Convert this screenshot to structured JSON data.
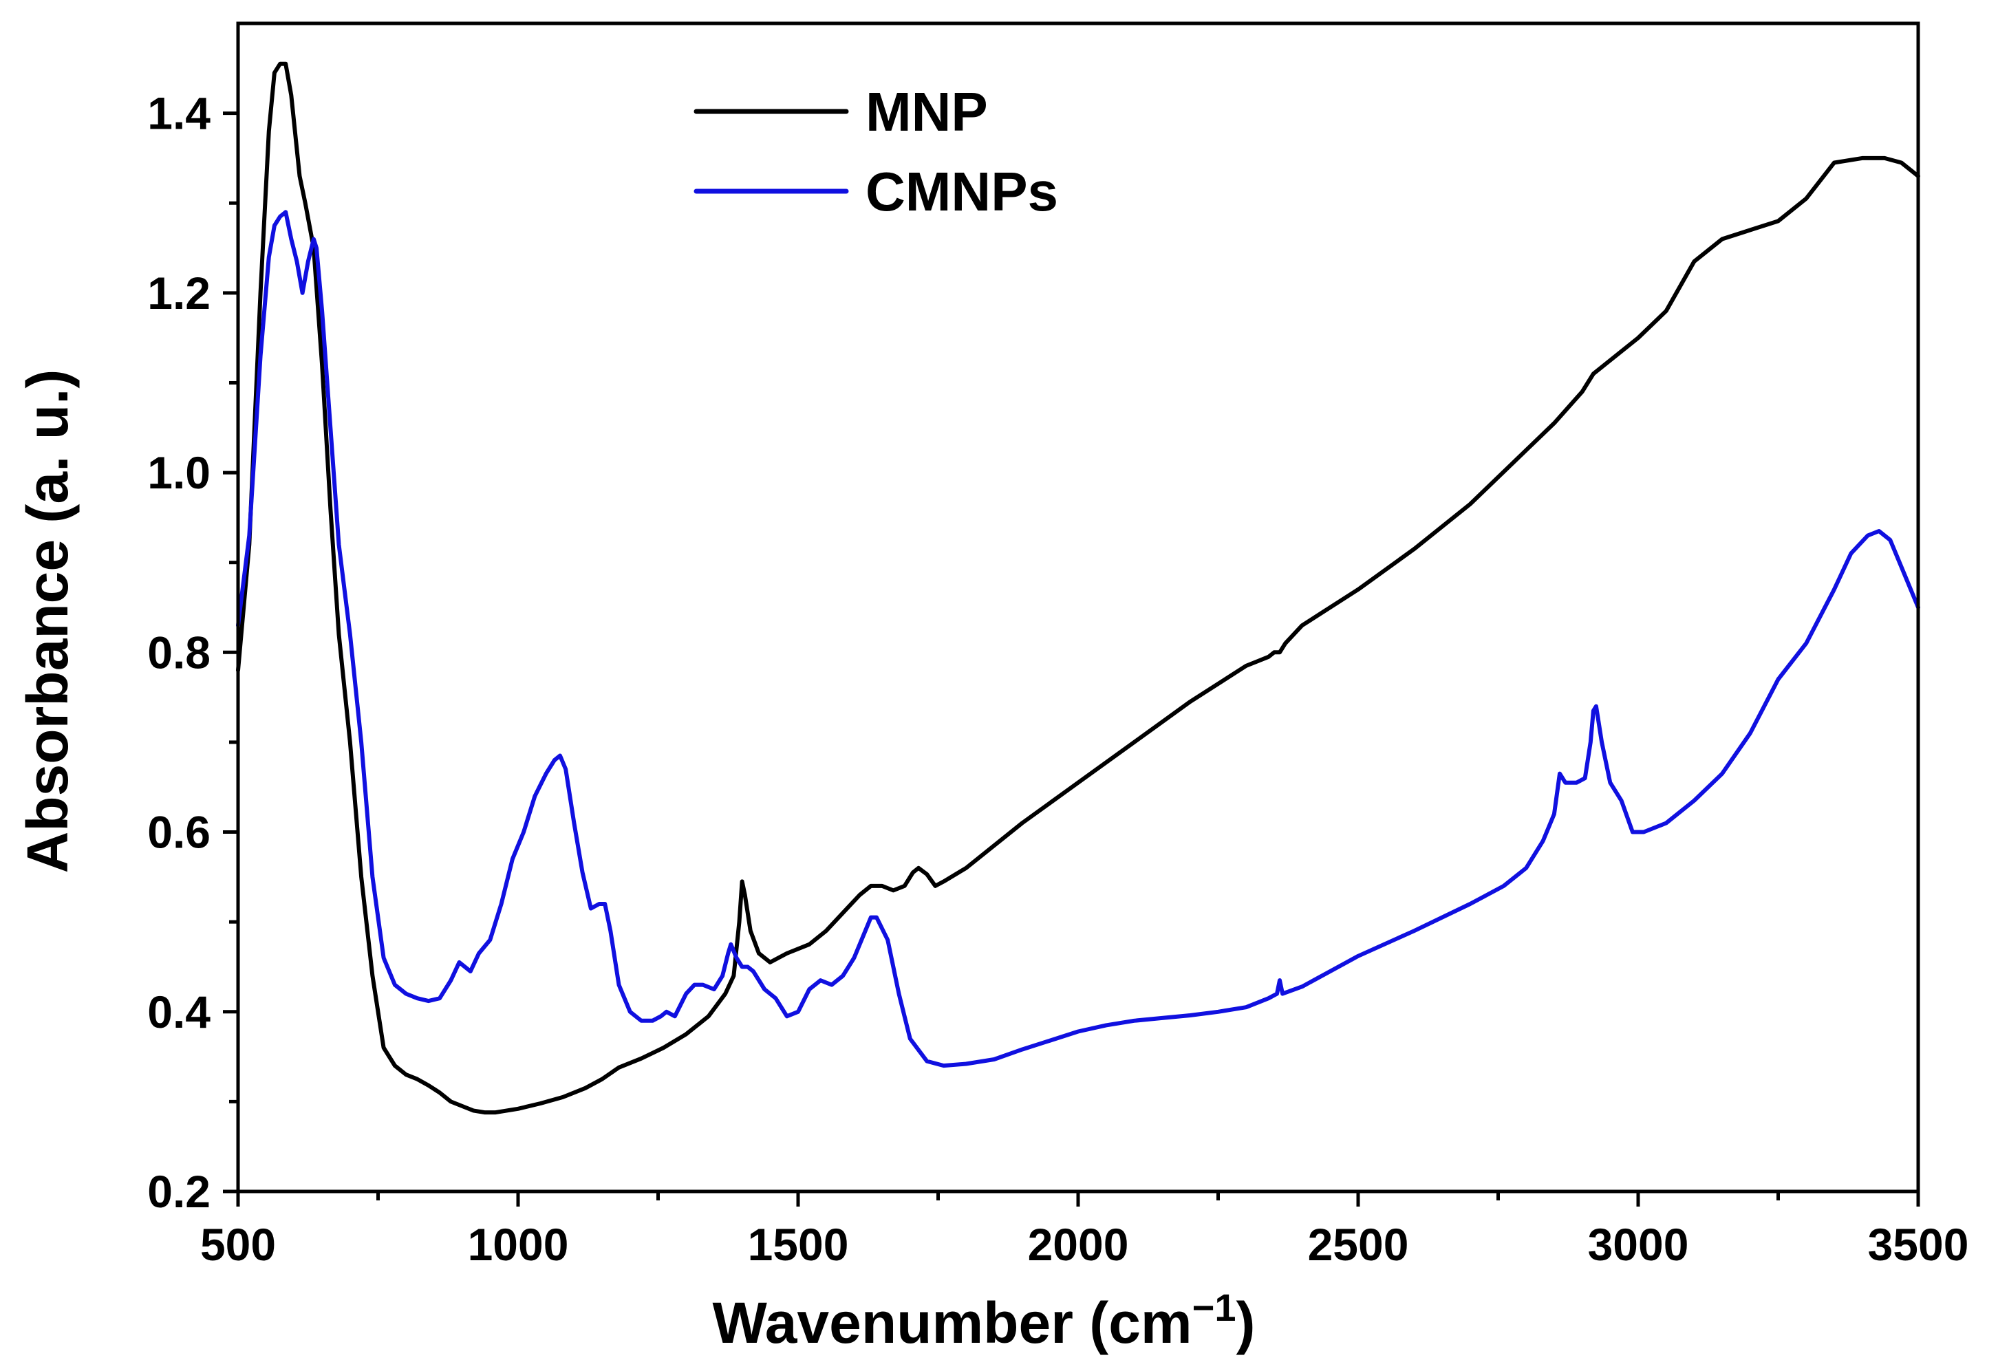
{
  "chart_data": {
    "type": "line",
    "title": "",
    "xlabel": "Wavenumber (cm",
    "xlabel_sup": "−1",
    "xlabel_close": ")",
    "ylabel": "Absorbance (a. u.)",
    "xlim": [
      500,
      3500
    ],
    "ylim": [
      0.2,
      1.5
    ],
    "xticks": [
      500,
      1000,
      1500,
      2000,
      2500,
      3000,
      3500
    ],
    "xtick_labels": [
      "500",
      "1000",
      "1500",
      "2000",
      "2500",
      "3000",
      "3500"
    ],
    "yticks": [
      0.2,
      0.4,
      0.6,
      0.8,
      1.0,
      1.2,
      1.4
    ],
    "ytick_labels": [
      "0.2",
      "0.4",
      "0.6",
      "0.8",
      "1.0",
      "1.2",
      "1.4"
    ],
    "legend_position": "top-center",
    "grid": false,
    "series": [
      {
        "name": "MNP",
        "color": "#000000",
        "x": [
          500,
          520,
          540,
          555,
          565,
          575,
          585,
          595,
          610,
          620,
          635,
          650,
          665,
          680,
          700,
          720,
          740,
          760,
          780,
          800,
          820,
          840,
          860,
          880,
          900,
          920,
          940,
          960,
          980,
          1000,
          1040,
          1080,
          1120,
          1150,
          1180,
          1220,
          1260,
          1300,
          1340,
          1370,
          1385,
          1395,
          1400,
          1405,
          1415,
          1430,
          1450,
          1465,
          1480,
          1520,
          1550,
          1580,
          1610,
          1630,
          1650,
          1670,
          1690,
          1705,
          1715,
          1730,
          1745,
          1760,
          1800,
          1900,
          2000,
          2100,
          2200,
          2300,
          2320,
          2340,
          2350,
          2360,
          2370,
          2400,
          2500,
          2600,
          2700,
          2800,
          2850,
          2900,
          2920,
          2950,
          3000,
          3050,
          3100,
          3150,
          3200,
          3250,
          3300,
          3350,
          3400,
          3440,
          3470,
          3500
        ],
        "values": [
          0.78,
          0.92,
          1.2,
          1.38,
          1.445,
          1.455,
          1.455,
          1.42,
          1.33,
          1.3,
          1.25,
          1.12,
          0.96,
          0.82,
          0.7,
          0.55,
          0.44,
          0.36,
          0.34,
          0.33,
          0.325,
          0.318,
          0.31,
          0.3,
          0.295,
          0.29,
          0.288,
          0.288,
          0.29,
          0.292,
          0.298,
          0.305,
          0.315,
          0.325,
          0.338,
          0.348,
          0.36,
          0.375,
          0.395,
          0.42,
          0.44,
          0.5,
          0.545,
          0.53,
          0.49,
          0.465,
          0.455,
          0.46,
          0.465,
          0.475,
          0.49,
          0.51,
          0.53,
          0.54,
          0.54,
          0.535,
          0.54,
          0.555,
          0.56,
          0.553,
          0.54,
          0.545,
          0.56,
          0.61,
          0.655,
          0.7,
          0.745,
          0.785,
          0.79,
          0.795,
          0.8,
          0.8,
          0.81,
          0.83,
          0.87,
          0.915,
          0.965,
          1.025,
          1.055,
          1.09,
          1.11,
          1.125,
          1.15,
          1.18,
          1.235,
          1.26,
          1.27,
          1.28,
          1.305,
          1.345,
          1.35,
          1.35,
          1.345,
          1.33
        ]
      },
      {
        "name": "CMNPs",
        "color": "#1010e0",
        "x": [
          500,
          520,
          540,
          555,
          565,
          575,
          585,
          595,
          605,
          615,
          625,
          635,
          640,
          650,
          665,
          680,
          700,
          720,
          740,
          760,
          780,
          800,
          820,
          840,
          860,
          880,
          895,
          905,
          915,
          930,
          950,
          970,
          990,
          1010,
          1030,
          1050,
          1065,
          1075,
          1085,
          1100,
          1115,
          1130,
          1145,
          1155,
          1165,
          1180,
          1200,
          1220,
          1240,
          1255,
          1265,
          1280,
          1300,
          1315,
          1330,
          1350,
          1365,
          1375,
          1380,
          1390,
          1400,
          1410,
          1420,
          1440,
          1460,
          1480,
          1500,
          1520,
          1540,
          1560,
          1580,
          1600,
          1620,
          1630,
          1640,
          1660,
          1680,
          1700,
          1730,
          1760,
          1800,
          1850,
          1900,
          1950,
          2000,
          2050,
          2100,
          2150,
          2200,
          2250,
          2300,
          2340,
          2355,
          2360,
          2365,
          2400,
          2500,
          2600,
          2700,
          2760,
          2800,
          2830,
          2850,
          2860,
          2870,
          2890,
          2905,
          2915,
          2920,
          2925,
          2935,
          2950,
          2970,
          2990,
          3010,
          3050,
          3100,
          3150,
          3200,
          3250,
          3300,
          3350,
          3380,
          3410,
          3430,
          3450,
          3470,
          3500
        ],
        "values": [
          0.83,
          0.93,
          1.13,
          1.24,
          1.275,
          1.285,
          1.29,
          1.26,
          1.235,
          1.2,
          1.235,
          1.26,
          1.25,
          1.18,
          1.05,
          0.92,
          0.82,
          0.7,
          0.55,
          0.46,
          0.43,
          0.42,
          0.415,
          0.412,
          0.415,
          0.435,
          0.455,
          0.45,
          0.445,
          0.465,
          0.48,
          0.52,
          0.57,
          0.6,
          0.64,
          0.665,
          0.68,
          0.685,
          0.67,
          0.61,
          0.555,
          0.515,
          0.52,
          0.52,
          0.49,
          0.43,
          0.4,
          0.39,
          0.39,
          0.395,
          0.4,
          0.395,
          0.42,
          0.43,
          0.43,
          0.425,
          0.44,
          0.465,
          0.475,
          0.46,
          0.45,
          0.45,
          0.445,
          0.425,
          0.415,
          0.395,
          0.4,
          0.425,
          0.435,
          0.43,
          0.44,
          0.46,
          0.49,
          0.505,
          0.505,
          0.48,
          0.42,
          0.37,
          0.345,
          0.34,
          0.342,
          0.347,
          0.358,
          0.368,
          0.378,
          0.385,
          0.39,
          0.393,
          0.396,
          0.4,
          0.405,
          0.415,
          0.42,
          0.435,
          0.42,
          0.428,
          0.462,
          0.49,
          0.52,
          0.54,
          0.56,
          0.59,
          0.62,
          0.665,
          0.655,
          0.655,
          0.66,
          0.7,
          0.735,
          0.74,
          0.7,
          0.655,
          0.635,
          0.6,
          0.6,
          0.61,
          0.635,
          0.665,
          0.71,
          0.77,
          0.81,
          0.87,
          0.91,
          0.93,
          0.935,
          0.925,
          0.895,
          0.85
        ]
      }
    ]
  }
}
